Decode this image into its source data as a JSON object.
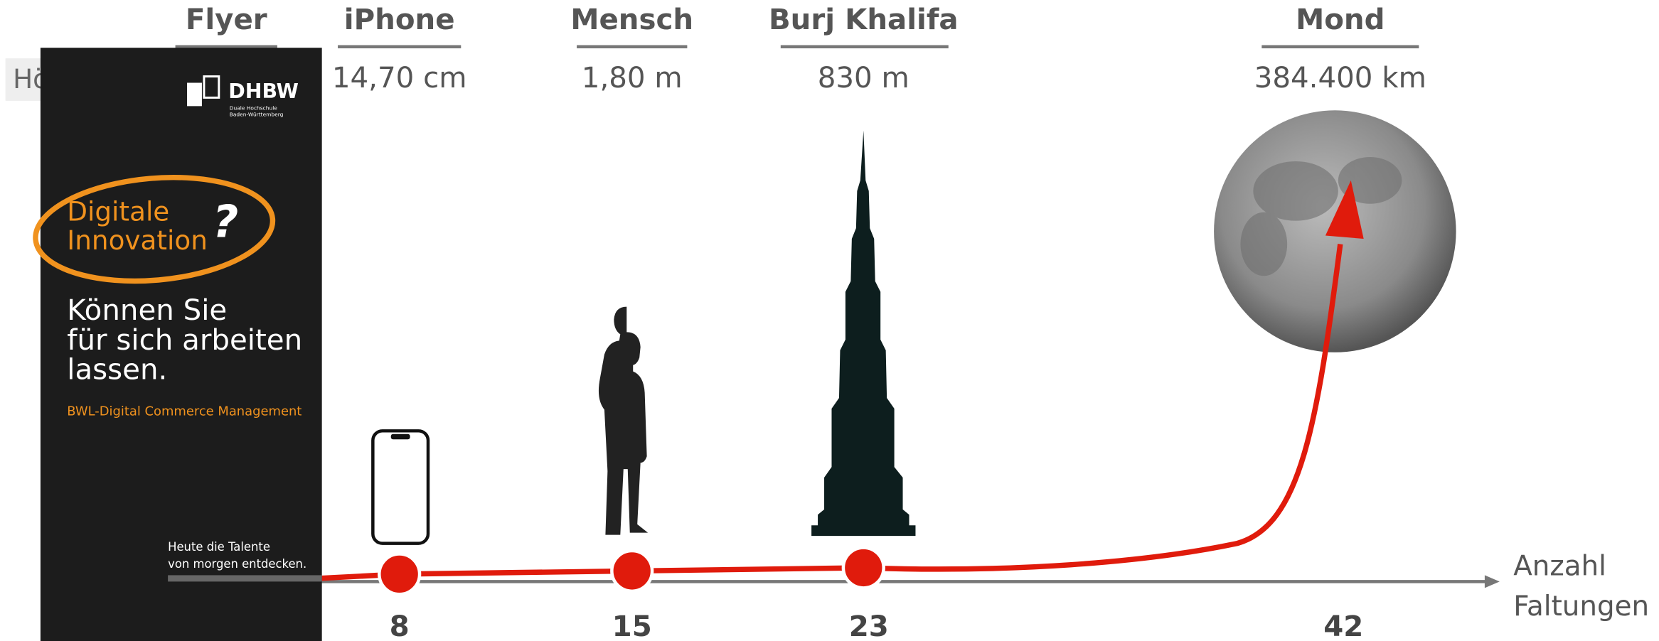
{
  "row_label": "Hö",
  "columns": [
    {
      "name": "Flyer"
    },
    {
      "name": "iPhone",
      "height": "14,70 cm",
      "folds": 8
    },
    {
      "name": "Mensch",
      "height": "1,80 m",
      "folds": 15
    },
    {
      "name": "Burj Khalifa",
      "height": "830 m",
      "folds": 23
    },
    {
      "name": "Mond",
      "height": "384.400 km",
      "folds": 42
    }
  ],
  "axis_label": [
    "Anzahl",
    "Faltungen"
  ],
  "flyer": {
    "logo": "DHBW",
    "logo_sub": [
      "Duale Hochschule",
      "Baden-Württemberg"
    ],
    "headline": [
      "Digitale",
      "Innovation",
      "?"
    ],
    "claim": [
      "Können Sie",
      "für sich arbeiten",
      "lassen."
    ],
    "program": "BWL-Digital Commerce Management",
    "footer": [
      "Heute die Talente",
      "von morgen entdecken."
    ]
  }
}
